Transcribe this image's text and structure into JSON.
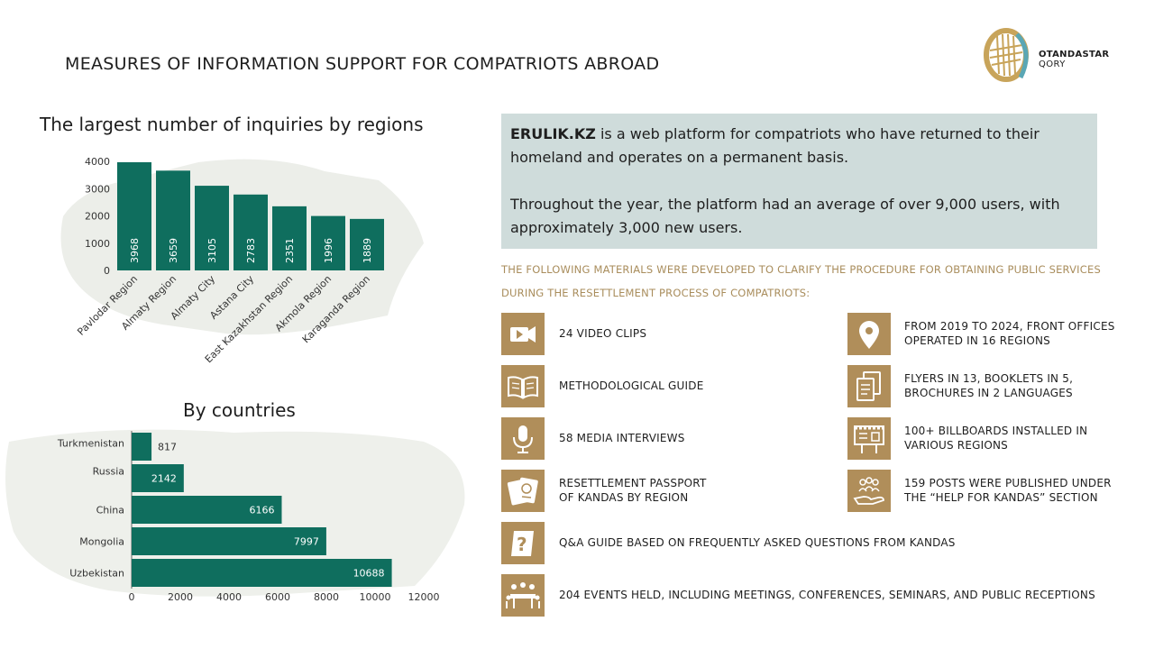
{
  "page": {
    "title": "MEASURES OF INFORMATION SUPPORT FOR COMPATRIOTS ABROAD",
    "logo": {
      "line1": "OTANDASTAR",
      "line2": "QORY",
      "accent_color": "#c8a45a",
      "secondary_color": "#5aa7b5"
    }
  },
  "colors": {
    "bar": "#0f6e5e",
    "tile": "#b08e5a",
    "info_box": "#cfdcdb",
    "gold_text": "#a98d5c"
  },
  "chart_data": [
    {
      "type": "bar",
      "title": "The largest number of inquiries by regions",
      "categories": [
        "Pavlodar Region",
        "Almaty Region",
        "Almaty City",
        "Astana City",
        "East Kazakhstan Region",
        "Akmola Region",
        "Karaganda Region"
      ],
      "values": [
        3968,
        3659,
        3105,
        2783,
        2351,
        1996,
        1889
      ],
      "value_labels": [
        "3968",
        "3659",
        "3105",
        "2783",
        "2351",
        "1996",
        "1889"
      ],
      "yticks": [
        "0",
        "1000",
        "2000",
        "3000",
        "4000"
      ],
      "ylim": [
        0,
        4000
      ],
      "grid": false,
      "legend": "none"
    },
    {
      "type": "bar",
      "orientation": "horizontal",
      "title": "By countries",
      "categories": [
        "Turkmenistan",
        "Russia",
        "China",
        "Mongolia",
        "Uzbekistan"
      ],
      "values": [
        817,
        2142,
        6166,
        7997,
        10688
      ],
      "value_labels": [
        "817",
        "2142",
        "6166",
        "7997",
        "10688"
      ],
      "xticks": [
        "0",
        "2000",
        "4000",
        "6000",
        "8000",
        "10000",
        "12000"
      ],
      "xlim": [
        0,
        12000
      ],
      "grid": false,
      "legend": "none"
    }
  ],
  "info": {
    "brand": "ERULIK.KZ",
    "para1_rest": " is a web platform for compatriots who have returned to their homeland and operates on a permanent basis.",
    "para2": "Throughout the year, the platform had an average of over 9,000 users, with approximately 3,000 new users."
  },
  "materials": {
    "heading": "THE FOLLOWING MATERIALS WERE DEVELOPED TO CLARIFY THE PROCEDURE FOR OBTAINING PUBLIC SERVICES DURING THE RESETTLEMENT PROCESS OF COMPATRIOTS:",
    "items": [
      {
        "icon": "video-camera-icon",
        "text": "24 VIDEO CLIPS"
      },
      {
        "icon": "book-icon",
        "text": "METHODOLOGICAL GUIDE"
      },
      {
        "icon": "microphone-icon",
        "text": "58 MEDIA INTERVIEWS"
      },
      {
        "icon": "passport-icon",
        "line1": "RESETTLEMENT PASSPORT",
        "line2": "OF KANDAS BY REGION"
      },
      {
        "icon": "location-pin-icon",
        "line1": "FROM 2019 TO 2024, FRONT OFFICES",
        "line2": "OPERATED IN 16 REGIONS"
      },
      {
        "icon": "documents-icon",
        "line1": "FLYERS IN 13, BOOKLETS IN 5,",
        "line2": "BROCHURES IN 2 LANGUAGES"
      },
      {
        "icon": "billboard-icon",
        "line1": "100+ BILLBOARDS INSTALLED IN",
        "line2": "VARIOUS REGIONS"
      },
      {
        "icon": "helping-hand-icon",
        "line1": "159 POSTS WERE PUBLISHED UNDER",
        "line2": "THE “HELP FOR KANDAS” SECTION"
      },
      {
        "icon": "question-book-icon",
        "text": "Q&A GUIDE BASED ON FREQUENTLY ASKED QUESTIONS FROM KANDAS"
      },
      {
        "icon": "meeting-table-icon",
        "text": "204 EVENTS HELD, INCLUDING MEETINGS, CONFERENCES, SEMINARS, AND PUBLIC RECEPTIONS"
      }
    ]
  }
}
